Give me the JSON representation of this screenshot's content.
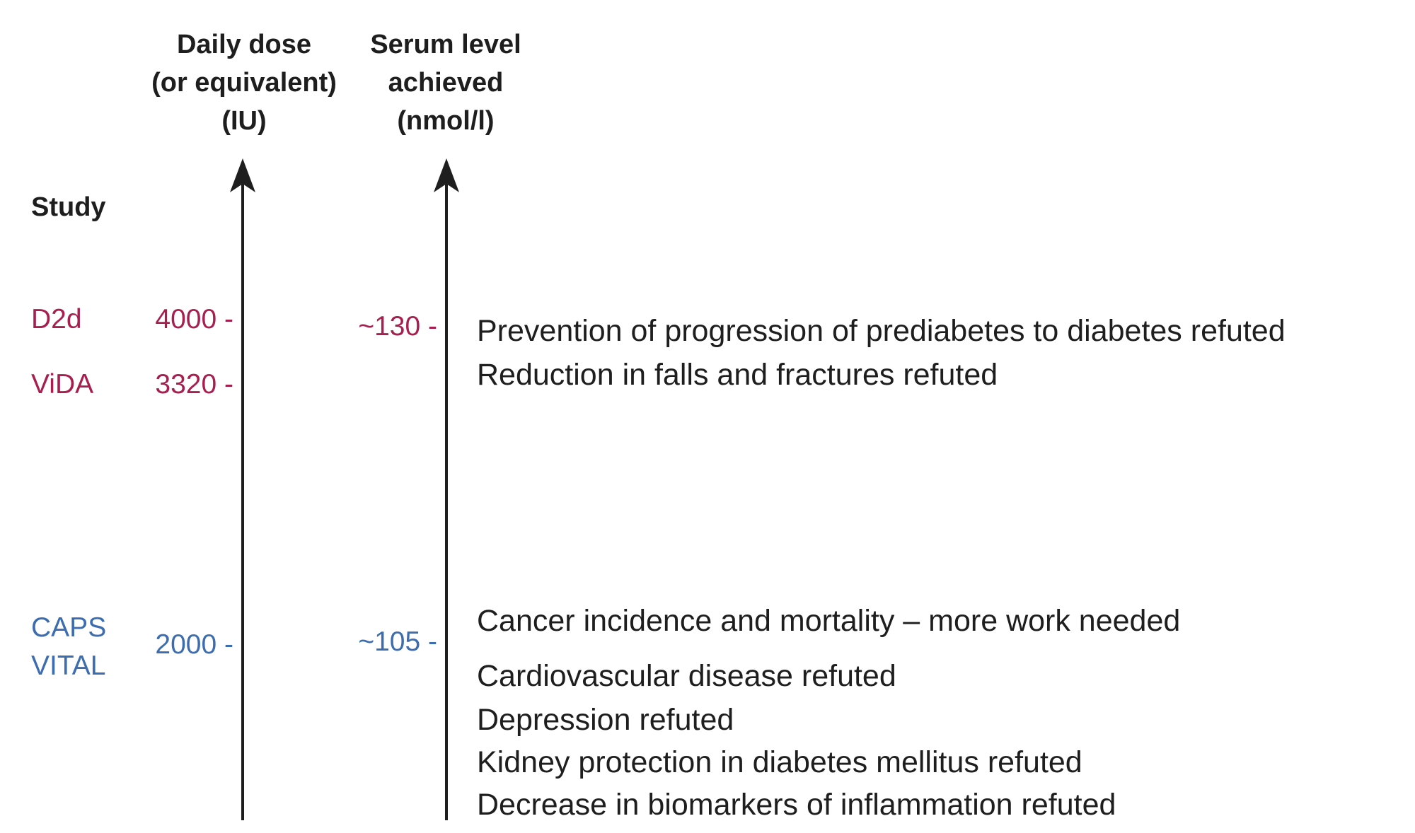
{
  "headers": {
    "dose": [
      "Daily dose",
      "(or equivalent)",
      "(IU)"
    ],
    "serum": [
      "Serum level",
      "achieved",
      "(nmol/l)"
    ],
    "study": "Study"
  },
  "studies": [
    {
      "label": "D2d",
      "dose": "4000 -"
    },
    {
      "label": "ViDA",
      "dose": "3320 -"
    },
    {
      "label": "CAPS",
      "dose": ""
    },
    {
      "label": "VITAL",
      "dose": "2000 -"
    }
  ],
  "serum_levels": {
    "high": "~130 -",
    "low": "~105 -"
  },
  "findings": [
    "Prevention of progression of prediabetes to diabetes refuted",
    "Reduction in falls and fractures refuted",
    "Cancer incidence and mortality – more work needed",
    "Cardiovascular disease refuted",
    "Depression refuted",
    "Kidney protection in diabetes mellitus refuted",
    "Decrease in biomarkers of inflammation refuted"
  ],
  "colors": {
    "high_dose": "#a81e4e",
    "low_dose": "#3b6db0",
    "text": "#1e1e1e"
  }
}
